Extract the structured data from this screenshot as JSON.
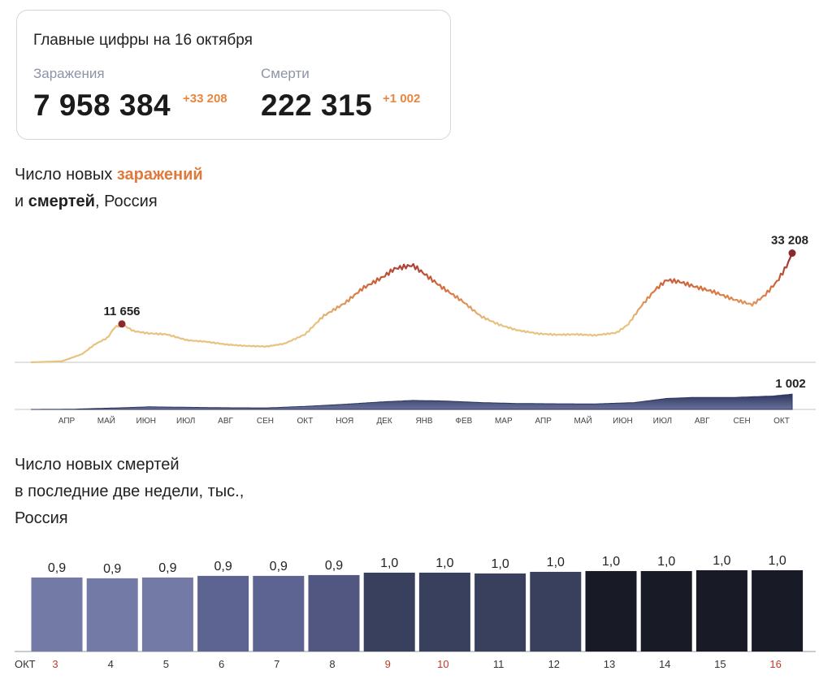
{
  "summary": {
    "title": "Главные цифры на 16 октября",
    "infections_label": "Заражения",
    "infections_value": "7 958 384",
    "infections_delta": "+33 208",
    "deaths_label": "Смерти",
    "deaths_value": "222 315",
    "deaths_delta": "+1 002"
  },
  "heading1": {
    "part1": "Число новых ",
    "part2": "заражений",
    "part3": "и ",
    "part4": "смертей",
    "part5": ", Россия"
  },
  "heading2": {
    "line1": "Число новых смертей",
    "line2": "в последние две недели, тыс.,",
    "line3": "Россия"
  },
  "chart_data": [
    {
      "type": "line",
      "name": "infections",
      "x_labels": [
        "АПР",
        "МАЙ",
        "ИЮН",
        "ИЮЛ",
        "АВГ",
        "СЕН",
        "ОКТ",
        "НОЯ",
        "ДЕК",
        "ЯНВ",
        "ФЕВ",
        "МАР",
        "АПР",
        "МАЙ",
        "ИЮН",
        "ИЮЛ",
        "АВГ",
        "СЕН",
        "ОКТ"
      ],
      "x_range": [
        "2020-03-01",
        "2021-10-16"
      ],
      "ylim": [
        0,
        40000
      ],
      "points": [
        [
          "2020-03-01",
          0
        ],
        [
          "2020-03-25",
          300
        ],
        [
          "2020-04-10",
          2500
        ],
        [
          "2020-04-20",
          5500
        ],
        [
          "2020-04-30",
          7500
        ],
        [
          "2020-05-05",
          10500
        ],
        [
          "2020-05-11",
          11656
        ],
        [
          "2020-05-20",
          9500
        ],
        [
          "2020-06-01",
          8800
        ],
        [
          "2020-06-15",
          8500
        ],
        [
          "2020-07-01",
          6700
        ],
        [
          "2020-07-15",
          6300
        ],
        [
          "2020-08-01",
          5400
        ],
        [
          "2020-08-15",
          5000
        ],
        [
          "2020-09-01",
          4800
        ],
        [
          "2020-09-15",
          5700
        ],
        [
          "2020-10-01",
          8500
        ],
        [
          "2020-10-15",
          14000
        ],
        [
          "2020-11-01",
          18000
        ],
        [
          "2020-11-15",
          22500
        ],
        [
          "2020-12-01",
          26000
        ],
        [
          "2020-12-10",
          28500
        ],
        [
          "2020-12-24",
          29500
        ],
        [
          "2021-01-05",
          26000
        ],
        [
          "2021-01-15",
          23000
        ],
        [
          "2021-02-01",
          18500
        ],
        [
          "2021-02-15",
          14000
        ],
        [
          "2021-03-01",
          11500
        ],
        [
          "2021-03-15",
          9800
        ],
        [
          "2021-04-01",
          8700
        ],
        [
          "2021-04-15",
          8400
        ],
        [
          "2021-05-01",
          8500
        ],
        [
          "2021-05-15",
          8200
        ],
        [
          "2021-06-01",
          9000
        ],
        [
          "2021-06-10",
          11500
        ],
        [
          "2021-06-20",
          17000
        ],
        [
          "2021-07-01",
          22000
        ],
        [
          "2021-07-10",
          25000
        ],
        [
          "2021-07-20",
          24500
        ],
        [
          "2021-08-01",
          23000
        ],
        [
          "2021-08-15",
          21500
        ],
        [
          "2021-09-01",
          19000
        ],
        [
          "2021-09-15",
          17500
        ],
        [
          "2021-09-25",
          20500
        ],
        [
          "2021-10-05",
          25000
        ],
        [
          "2021-10-12",
          29500
        ],
        [
          "2021-10-16",
          33208
        ]
      ],
      "annotations": [
        {
          "date": "2020-05-11",
          "value": 11656,
          "label": "11 656"
        },
        {
          "date": "2021-10-16",
          "value": 33208,
          "label": "33 208"
        }
      ],
      "colors": {
        "low": "#e8c27f",
        "mid": "#d9733f",
        "high": "#9e2f32",
        "marker": "#8b2a2a"
      }
    },
    {
      "type": "area",
      "name": "deaths",
      "ylim": [
        0,
        1600
      ],
      "points": [
        [
          "2020-03-01",
          0
        ],
        [
          "2020-04-01",
          10
        ],
        [
          "2020-04-20",
          60
        ],
        [
          "2020-05-15",
          120
        ],
        [
          "2020-06-01",
          170
        ],
        [
          "2020-07-01",
          140
        ],
        [
          "2020-08-01",
          110
        ],
        [
          "2020-09-01",
          100
        ],
        [
          "2020-10-01",
          200
        ],
        [
          "2020-11-01",
          340
        ],
        [
          "2020-12-01",
          500
        ],
        [
          "2020-12-24",
          590
        ],
        [
          "2021-01-15",
          560
        ],
        [
          "2021-02-15",
          450
        ],
        [
          "2021-03-15",
          390
        ],
        [
          "2021-04-15",
          370
        ],
        [
          "2021-05-15",
          360
        ],
        [
          "2021-06-15",
          450
        ],
        [
          "2021-07-10",
          720
        ],
        [
          "2021-08-01",
          790
        ],
        [
          "2021-09-01",
          790
        ],
        [
          "2021-10-01",
          880
        ],
        [
          "2021-10-16",
          1002
        ]
      ],
      "annotation": {
        "date": "2021-10-16",
        "value": 1002,
        "label": "1 002"
      },
      "color": "#2c3560"
    },
    {
      "type": "bar",
      "name": "new deaths, last two weeks, thousands",
      "month_label": "ОКТ",
      "categories": [
        "3",
        "4",
        "5",
        "6",
        "7",
        "8",
        "9",
        "10",
        "11",
        "12",
        "13",
        "14",
        "15",
        "16"
      ],
      "values": [
        0.92,
        0.91,
        0.92,
        0.94,
        0.94,
        0.95,
        0.98,
        0.98,
        0.97,
        0.99,
        1.0,
        1.0,
        1.01,
        1.01
      ],
      "labels": [
        "0,9",
        "0,9",
        "0,9",
        "0,9",
        "0,9",
        "0,9",
        "1,0",
        "1,0",
        "1,0",
        "1,0",
        "1,0",
        "1,0",
        "1,0",
        "1,0"
      ],
      "bar_colors": [
        "#747aa6",
        "#747aa6",
        "#747aa6",
        "#5e6492",
        "#5e6492",
        "#515780",
        "#39405e",
        "#39405e",
        "#39405e",
        "#39405e",
        "#181a26",
        "#181a26",
        "#181a26",
        "#181a26"
      ],
      "highlight_categories": [
        "3",
        "9",
        "10",
        "16"
      ],
      "highlight_color": "#c0392b",
      "ylim": [
        0,
        1.05
      ]
    }
  ]
}
